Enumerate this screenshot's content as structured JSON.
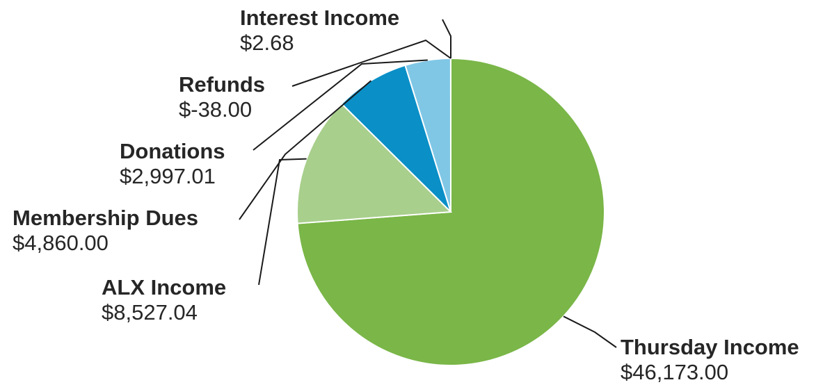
{
  "chart_data": {
    "type": "pie",
    "title": "",
    "slices": [
      {
        "label": "Thursday Income",
        "value_text": "$46,173.00",
        "value": 46173.0,
        "color": "#7ab648"
      },
      {
        "label": "ALX Income",
        "value_text": "$8,527.04",
        "value": 8527.04,
        "color": "#a8cf8c"
      },
      {
        "label": "Membership Dues",
        "value_text": "$4,860.00",
        "value": 4860.0,
        "color": "#0a8fc7"
      },
      {
        "label": "Donations",
        "value_text": "$2,997.01",
        "value": 2997.01,
        "color": "#80c7e6"
      },
      {
        "label": "Refunds",
        "value_text": "$-38.00",
        "value": -38.0,
        "color": "#5c5c5c"
      },
      {
        "label": "Interest Income",
        "value_text": "$2.68",
        "value": 2.68,
        "color": "#3d3d3d"
      }
    ],
    "legend": "none"
  }
}
